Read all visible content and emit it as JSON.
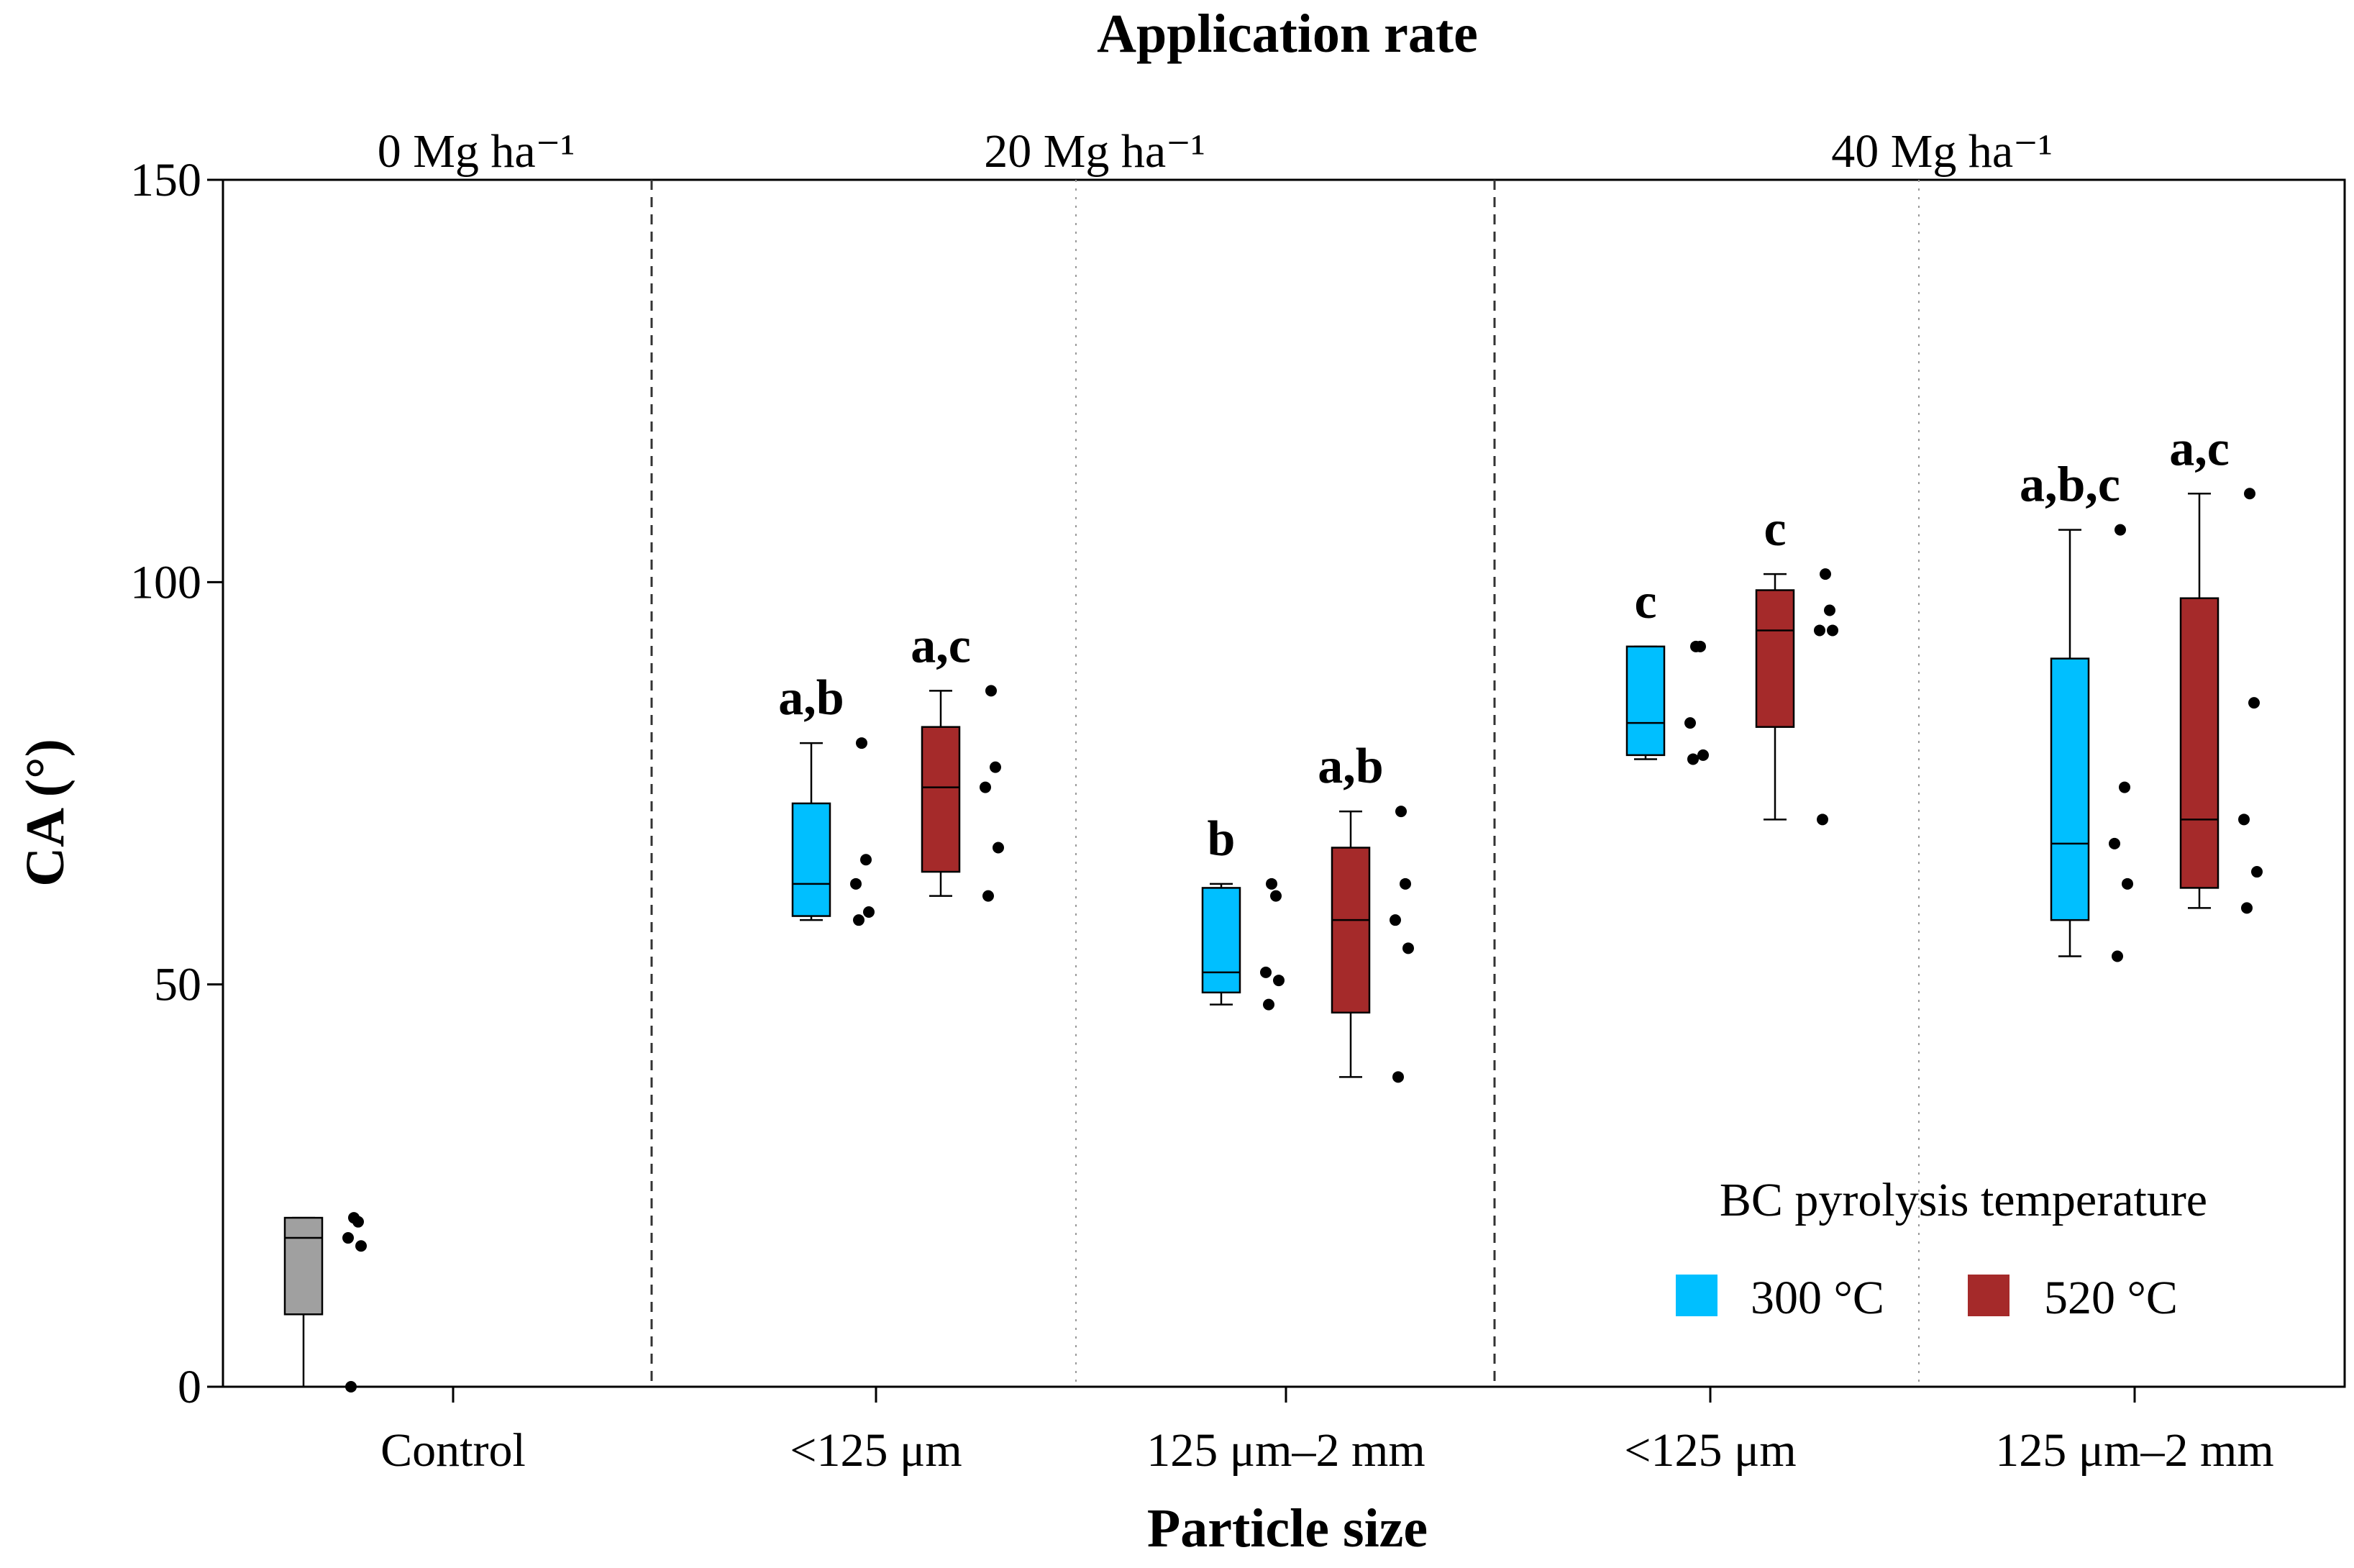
{
  "chart_data": {
    "type": "boxplot",
    "title": "Application rate",
    "xlabel": "Particle size",
    "ylabel": "CA (°)",
    "ylim": [
      0,
      150
    ],
    "yticks": [
      0,
      50,
      100,
      150
    ],
    "groups": [
      {
        "label": "0 Mg ha⁻¹",
        "categories": [
          "Control"
        ]
      },
      {
        "label": "20 Mg ha⁻¹",
        "categories": [
          "<125 μm",
          "125 μm–2 mm"
        ]
      },
      {
        "label": "40 Mg ha⁻¹",
        "categories": [
          "<125 μm",
          "125 μm–2 mm"
        ]
      }
    ],
    "categories": [
      "Control",
      "<125 μm",
      "125 μm–2 mm",
      "<125 μm",
      "125 μm–2 mm"
    ],
    "legend": {
      "title": "BC pyrolysis temperature",
      "position": "bottom-right",
      "entries": [
        {
          "name": "300 °C",
          "color": "#00bfff"
        },
        {
          "name": "520 °C",
          "color": "#a52a2a"
        }
      ]
    },
    "control_color": "#a0a0a0",
    "boxes": [
      {
        "category": 0,
        "series": "control",
        "min": 0,
        "q1": 9,
        "median": 18.5,
        "q3": 21,
        "max": 21,
        "points": [
          0,
          17.5,
          18.5,
          20.5,
          21
        ],
        "label": ""
      },
      {
        "category": 1,
        "series": "300 °C",
        "min": 58,
        "q1": 58.5,
        "median": 62.5,
        "q3": 72.5,
        "max": 80,
        "points": [
          58,
          59,
          62.5,
          65.5,
          80
        ],
        "label": "a,b"
      },
      {
        "category": 1,
        "series": "520 °C",
        "min": 61,
        "q1": 64,
        "median": 74.5,
        "q3": 82,
        "max": 86.5,
        "points": [
          61,
          67,
          74.5,
          77,
          86.5
        ],
        "label": "a,c"
      },
      {
        "category": 2,
        "series": "300 °C",
        "min": 47.5,
        "q1": 49,
        "median": 51.5,
        "q3": 62,
        "max": 62.5,
        "points": [
          47.5,
          50.5,
          51.5,
          61,
          62.5
        ],
        "label": "b"
      },
      {
        "category": 2,
        "series": "520 °C",
        "min": 38.5,
        "q1": 46.5,
        "median": 58,
        "q3": 67,
        "max": 71.5,
        "points": [
          38.5,
          54.5,
          58,
          62.5,
          71.5
        ],
        "label": "a,b"
      },
      {
        "category": 3,
        "series": "300 °C",
        "min": 78,
        "q1": 78.5,
        "median": 82.5,
        "q3": 92,
        "max": 92,
        "points": [
          78,
          78.5,
          82.5,
          92,
          92
        ],
        "label": "c"
      },
      {
        "category": 3,
        "series": "520 °C",
        "min": 70.5,
        "q1": 82,
        "median": 94,
        "q3": 99,
        "max": 101,
        "points": [
          70.5,
          94,
          94,
          96.5,
          101
        ],
        "label": "c"
      },
      {
        "category": 4,
        "series": "300 °C",
        "min": 53.5,
        "q1": 58,
        "median": 67.5,
        "q3": 90.5,
        "max": 106.5,
        "points": [
          53.5,
          62.5,
          67.5,
          74.5,
          106.5
        ],
        "label": "a,b,c"
      },
      {
        "category": 4,
        "series": "520 °C",
        "min": 59.5,
        "q1": 62,
        "median": 70.5,
        "q3": 98,
        "max": 111,
        "points": [
          59.5,
          64,
          70.5,
          85,
          111
        ],
        "label": "a,c"
      }
    ]
  }
}
